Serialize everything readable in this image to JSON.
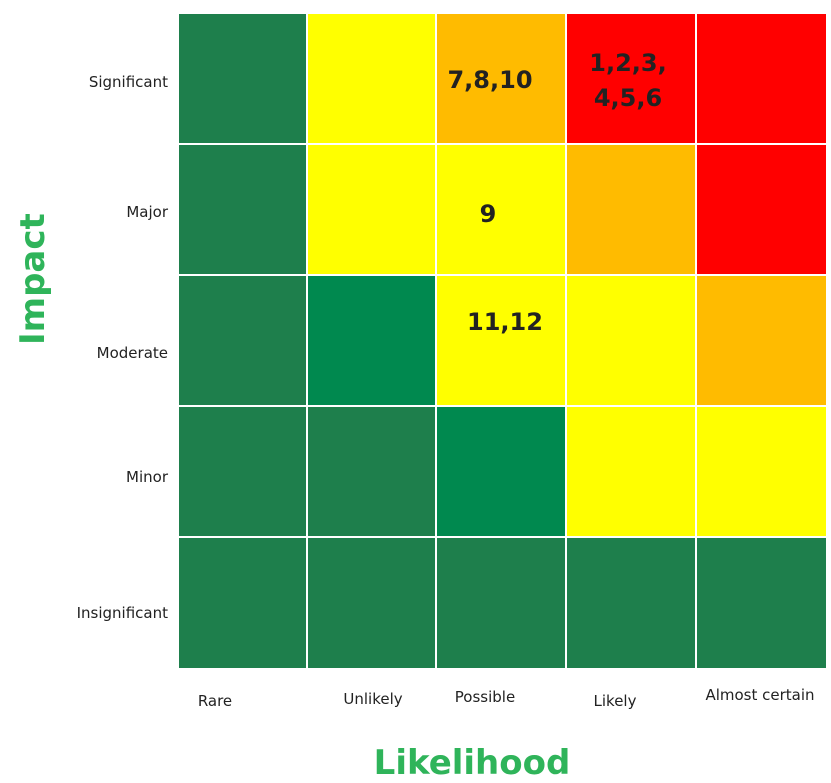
{
  "axis": {
    "y_title": "Impact",
    "x_title": "Likelihood"
  },
  "rows": [
    "Significant",
    "Major",
    "Moderate",
    "Minor",
    "Insignificant"
  ],
  "columns": [
    "Rare",
    "Unlikely",
    "Possible",
    "Likely",
    "Almost certain"
  ],
  "colors": {
    "dark_green": "#1e7f4c",
    "green": "#00894f",
    "yellow": "#ffff00",
    "orange": "#ffbb00",
    "red": "#ff0000"
  },
  "grid": [
    [
      {
        "color": "dark_green",
        "text": []
      },
      {
        "color": "yellow",
        "text": []
      },
      {
        "color": "orange",
        "text": [
          "7,8,10"
        ]
      },
      {
        "color": "red",
        "text": [
          "1,2,3,",
          "4,5,6"
        ]
      },
      {
        "color": "red",
        "text": []
      }
    ],
    [
      {
        "color": "dark_green",
        "text": []
      },
      {
        "color": "yellow",
        "text": []
      },
      {
        "color": "yellow",
        "text": [
          "9"
        ]
      },
      {
        "color": "orange",
        "text": []
      },
      {
        "color": "red",
        "text": []
      }
    ],
    [
      {
        "color": "dark_green",
        "text": []
      },
      {
        "color": "green",
        "text": []
      },
      {
        "color": "yellow",
        "text": [
          "11,12"
        ]
      },
      {
        "color": "yellow",
        "text": []
      },
      {
        "color": "orange",
        "text": []
      }
    ],
    [
      {
        "color": "dark_green",
        "text": []
      },
      {
        "color": "dark_green",
        "text": []
      },
      {
        "color": "green",
        "text": []
      },
      {
        "color": "yellow",
        "text": []
      },
      {
        "color": "yellow",
        "text": []
      }
    ],
    [
      {
        "color": "dark_green",
        "text": []
      },
      {
        "color": "dark_green",
        "text": []
      },
      {
        "color": "dark_green",
        "text": []
      },
      {
        "color": "dark_green",
        "text": []
      },
      {
        "color": "dark_green",
        "text": []
      }
    ]
  ]
}
